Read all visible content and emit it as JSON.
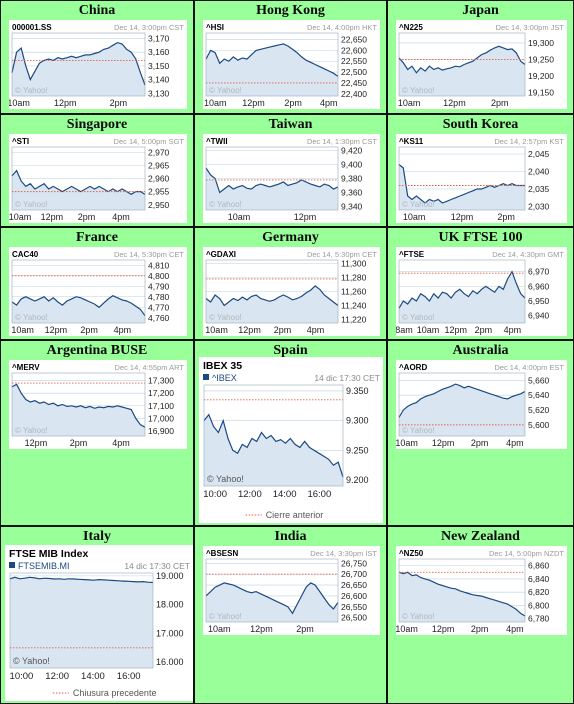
{
  "colors": {
    "cell_bg": "#99ff99",
    "line": "#1c4a80",
    "fill": "#d9e6f2",
    "prev_close": "#e06040",
    "grid": "#bcd0e6",
    "yahoo": "#b0b6bd",
    "label": "#222222"
  },
  "markets": [
    {
      "title": "China",
      "chart_data": {
        "type": "area",
        "style": "small",
        "symbol": "000001.SS",
        "stamp": "Dec 14, 3:00pm CST",
        "ylim": [
          3128,
          3174
        ],
        "yticks": [
          "3,170",
          "3,160",
          "3,150",
          "3,140",
          "3,130"
        ],
        "ytick_values": [
          3170,
          3160,
          3150,
          3140,
          3130
        ],
        "xticks": [
          "10am",
          "12pm",
          "2pm"
        ],
        "xtick_pos": [
          0.05,
          0.4,
          0.8
        ],
        "prev_close": 3154,
        "source": "© Yahoo!",
        "values": [
          3145,
          3160,
          3163,
          3150,
          3140,
          3146,
          3152,
          3154,
          3155,
          3154,
          3156,
          3155,
          3156,
          3157,
          3156,
          3157,
          3158,
          3158,
          3159,
          3160,
          3162,
          3163,
          3165,
          3167,
          3166,
          3162,
          3160,
          3155,
          3145,
          3136
        ]
      }
    },
    {
      "title": "Hong Kong",
      "chart_data": {
        "type": "area",
        "style": "small",
        "symbol": "^HSI",
        "stamp": "Dec 14, 4:00pm HKT",
        "ylim": [
          22390,
          22680
        ],
        "yticks": [
          "22,650",
          "22,600",
          "22,550",
          "22,500",
          "22,450",
          "22,400"
        ],
        "ytick_values": [
          22650,
          22600,
          22550,
          22500,
          22450,
          22400
        ],
        "xticks": [
          "10am",
          "12pm",
          "2pm",
          "4pm"
        ],
        "xtick_pos": [
          0.07,
          0.36,
          0.66,
          0.93
        ],
        "prev_close": 22450,
        "source": "© Yahoo!",
        "values": [
          22560,
          22600,
          22590,
          22540,
          22560,
          22550,
          22570,
          22555,
          22565,
          22560,
          22580,
          22600,
          22605,
          22610,
          22615,
          22620,
          22625,
          22630,
          22620,
          22605,
          22590,
          22570,
          22555,
          22545,
          22535,
          22525,
          22515,
          22505,
          22495,
          22480
        ]
      }
    },
    {
      "title": "Japan",
      "chart_data": {
        "type": "area",
        "style": "small",
        "symbol": "^N225",
        "stamp": "Dec 14, 3:00pm JST",
        "ylim": [
          19140,
          19330
        ],
        "yticks": [
          "19,300",
          "19,250",
          "19,200",
          "19,150"
        ],
        "ytick_values": [
          19300,
          19250,
          19200,
          19150
        ],
        "xticks": [
          "10am",
          "12pm",
          "2pm"
        ],
        "xtick_pos": [
          0.08,
          0.44,
          0.8
        ],
        "prev_close": 19250,
        "source": "© Yahoo!",
        "values": [
          19255,
          19240,
          19220,
          19230,
          19210,
          19225,
          19215,
          19230,
          19220,
          19225,
          19218,
          19222,
          19225,
          19230,
          19228,
          19235,
          19240,
          19245,
          19255,
          19265,
          19270,
          19278,
          19285,
          19290,
          19285,
          19280,
          19282,
          19270,
          19245,
          19235
        ]
      }
    },
    {
      "title": "Singapore",
      "chart_data": {
        "type": "area",
        "style": "small",
        "symbol": "^STI",
        "stamp": "Dec 14, 5:00pm SGT",
        "ylim": [
          2948,
          2972
        ],
        "yticks": [
          "2,970",
          "2,965",
          "2,960",
          "2,955",
          "2,950"
        ],
        "ytick_values": [
          2970,
          2965,
          2960,
          2955,
          2950
        ],
        "xticks": [
          "10am",
          "12pm",
          "2pm",
          "4pm"
        ],
        "xtick_pos": [
          0.06,
          0.3,
          0.56,
          0.82
        ],
        "prev_close": 2955,
        "source": "© Yahoo!",
        "values": [
          2961,
          2963,
          2959,
          2957,
          2958,
          2956,
          2957,
          2958,
          2956,
          2957,
          2956,
          2955,
          2956,
          2957,
          2956,
          2955,
          2956,
          2957,
          2956,
          2957,
          2956,
          2955,
          2956,
          2955,
          2956,
          2955,
          2954,
          2955,
          2955,
          2954
        ]
      }
    },
    {
      "title": "Taiwan",
      "chart_data": {
        "type": "area",
        "style": "small",
        "symbol": "^TWII",
        "stamp": "Dec 14, 1:30pm CST",
        "ylim": [
          9335,
          9425
        ],
        "yticks": [
          "9,420",
          "9,400",
          "9,380",
          "9,360",
          "9,340"
        ],
        "ytick_values": [
          9420,
          9400,
          9380,
          9360,
          9340
        ],
        "xticks": [
          "10am",
          "12pm"
        ],
        "xtick_pos": [
          0.25,
          0.75
        ],
        "prev_close": 9378,
        "source": "© Yahoo!",
        "values": [
          9395,
          9385,
          9380,
          9360,
          9365,
          9370,
          9365,
          9368,
          9370,
          9366,
          9365,
          9370,
          9372,
          9370,
          9368,
          9370,
          9372,
          9375,
          9370,
          9372,
          9374,
          9378,
          9375,
          9372,
          9370,
          9368,
          9372,
          9370,
          9365,
          9368
        ]
      }
    },
    {
      "title": "South Korea",
      "chart_data": {
        "type": "area",
        "style": "small",
        "symbol": "^KS11",
        "stamp": "Dec 14, 2:57pm KST",
        "ylim": [
          2029,
          2047
        ],
        "yticks": [
          "2,045",
          "2,040",
          "2,035",
          "2,030"
        ],
        "ytick_values": [
          2045,
          2040,
          2035,
          2030
        ],
        "xticks": [
          "10am",
          "12pm",
          "2pm"
        ],
        "xtick_pos": [
          0.12,
          0.5,
          0.85
        ],
        "prev_close": 2036,
        "source": "© Yahoo!",
        "values": [
          2042,
          2041,
          2033,
          2032,
          2033,
          2032,
          2031,
          2032,
          2031.5,
          2032,
          2031,
          2031.5,
          2032,
          2032.5,
          2033,
          2033.5,
          2034,
          2034.5,
          2035,
          2035,
          2035.5,
          2036,
          2035.5,
          2036,
          2036.5,
          2036,
          2036.5,
          2036,
          2036,
          2036
        ]
      }
    },
    {
      "title": "France",
      "chart_data": {
        "type": "area",
        "style": "small",
        "symbol": "CAC40",
        "stamp": "Dec 14, 5:30pm CET",
        "ylim": [
          4755,
          4815
        ],
        "yticks": [
          "4,810",
          "4,800",
          "4,790",
          "4,780",
          "4,770",
          "4,760"
        ],
        "ytick_values": [
          4810,
          4800,
          4790,
          4780,
          4770,
          4760
        ],
        "xticks": [
          "10am",
          "12pm",
          "2pm",
          "4pm"
        ],
        "xtick_pos": [
          0.08,
          0.33,
          0.58,
          0.83
        ],
        "prev_close": 4800,
        "source": "© Yahoo!",
        "values": [
          4775,
          4772,
          4778,
          4780,
          4778,
          4776,
          4778,
          4780,
          4776,
          4779,
          4775,
          4772,
          4776,
          4778,
          4780,
          4779,
          4777,
          4775,
          4773,
          4770,
          4774,
          4778,
          4781,
          4779,
          4777,
          4776,
          4774,
          4771,
          4768,
          4762
        ]
      }
    },
    {
      "title": "Germany",
      "chart_data": {
        "type": "area",
        "style": "small",
        "symbol": "^GDAXI",
        "stamp": "Dec 14, 5:30pm CET",
        "ylim": [
          11215,
          11305
        ],
        "yticks": [
          "11,300",
          "11,280",
          "11,260",
          "11,240",
          "11,220"
        ],
        "ytick_values": [
          11300,
          11280,
          11260,
          11240,
          11220
        ],
        "xticks": [
          "10am",
          "12pm",
          "2pm",
          "4pm"
        ],
        "xtick_pos": [
          0.08,
          0.33,
          0.58,
          0.83
        ],
        "prev_close": 11278,
        "source": "© Yahoo!",
        "values": [
          11250,
          11245,
          11255,
          11250,
          11240,
          11245,
          11250,
          11247,
          11252,
          11248,
          11253,
          11255,
          11250,
          11248,
          11246,
          11248,
          11252,
          11255,
          11252,
          11248,
          11250,
          11253,
          11258,
          11262,
          11268,
          11263,
          11255,
          11250,
          11245,
          11240
        ]
      }
    },
    {
      "title": "UK FTSE 100",
      "chart_data": {
        "type": "area",
        "style": "small",
        "symbol": "^FTSE",
        "stamp": "Dec 14, 4:30pm GMT",
        "ylim": [
          6935,
          6978
        ],
        "yticks": [
          "6,970",
          "6,960",
          "6,950",
          "6,940"
        ],
        "ytick_values": [
          6970,
          6960,
          6950,
          6940
        ],
        "xticks": [
          "8am",
          "10am",
          "12pm",
          "2pm",
          "4pm"
        ],
        "xtick_pos": [
          0.04,
          0.23,
          0.45,
          0.67,
          0.9
        ],
        "prev_close": 6969,
        "source": "© Yahoo!",
        "values": [
          6945,
          6950,
          6948,
          6952,
          6950,
          6955,
          6953,
          6950,
          6955,
          6952,
          6956,
          6955,
          6952,
          6956,
          6958,
          6955,
          6953,
          6957,
          6955,
          6958,
          6960,
          6958,
          6956,
          6960,
          6958,
          6965,
          6970,
          6962,
          6955,
          6952
        ]
      }
    },
    {
      "title": "Argentina BUSE",
      "chart_data": {
        "type": "area",
        "style": "small",
        "symbol": "^MERV",
        "stamp": "Dec 14, 4:55pm ART",
        "ylim": [
          16860,
          17360
        ],
        "yticks": [
          "17,300",
          "17,200",
          "17,100",
          "17,000",
          "16,900"
        ],
        "ytick_values": [
          17300,
          17200,
          17100,
          17000,
          16900
        ],
        "xticks": [
          "12pm",
          "2pm",
          "4pm"
        ],
        "xtick_pos": [
          0.18,
          0.5,
          0.82
        ],
        "prev_close": 17280,
        "source": "© Yahoo!",
        "values": [
          17250,
          17270,
          17200,
          17150,
          17130,
          17140,
          17120,
          17130,
          17110,
          17120,
          17100,
          17110,
          17095,
          17100,
          17090,
          17100,
          17085,
          17095,
          17080,
          17090,
          17085,
          17095,
          17090,
          17100,
          17090,
          17080,
          17070,
          17000,
          16950,
          16930
        ]
      }
    },
    {
      "title": "Spain",
      "chart_data": {
        "type": "area",
        "style": "large",
        "header": "IBEX 35",
        "symbol": "^IBEX",
        "stamp": "14 dic 17:30 CET",
        "ylim": [
          9190,
          9360
        ],
        "yticks": [
          "9.350",
          "9.300",
          "9.250",
          "9.200"
        ],
        "ytick_values": [
          9350,
          9300,
          9250,
          9200
        ],
        "xticks": [
          "10:00",
          "12:00",
          "14:00",
          "16:00"
        ],
        "xtick_pos": [
          0.08,
          0.33,
          0.58,
          0.83
        ],
        "prev_close": 9335,
        "source": "© Yahoo!",
        "legend": "Cierre anterior",
        "values": [
          9300,
          9310,
          9290,
          9280,
          9300,
          9270,
          9250,
          9245,
          9260,
          9255,
          9270,
          9265,
          9280,
          9270,
          9275,
          9265,
          9268,
          9262,
          9270,
          9260,
          9255,
          9265,
          9255,
          9250,
          9245,
          9240,
          9235,
          9225,
          9230,
          9205
        ]
      }
    },
    {
      "title": "Australia",
      "chart_data": {
        "type": "area",
        "style": "small",
        "symbol": "^AORD",
        "stamp": "Dec 14, 4:00pm EST",
        "ylim": [
          5585,
          5670
        ],
        "yticks": [
          "5,660",
          "5,640",
          "5,620",
          "5,600"
        ],
        "ytick_values": [
          5660,
          5640,
          5620,
          5600
        ],
        "xticks": [
          "10am",
          "12pm",
          "2pm",
          "4pm"
        ],
        "xtick_pos": [
          0.06,
          0.35,
          0.64,
          0.92
        ],
        "prev_close": 5600,
        "source": "© Yahoo!",
        "values": [
          5610,
          5620,
          5625,
          5628,
          5630,
          5635,
          5638,
          5640,
          5642,
          5645,
          5648,
          5650,
          5652,
          5655,
          5653,
          5650,
          5652,
          5650,
          5648,
          5646,
          5644,
          5642,
          5640,
          5638,
          5636,
          5635,
          5638,
          5640,
          5642,
          5645
        ]
      }
    },
    {
      "title": "Italy",
      "chart_data": {
        "type": "area",
        "style": "large",
        "header": "FTSE MIB Index",
        "symbol": "FTSEMIB.MI",
        "stamp": "14 dic 17:30 CET",
        "ylim": [
          15800,
          19100
        ],
        "yticks": [
          "19.000",
          "18.000",
          "17.000",
          "16.000"
        ],
        "ytick_values": [
          19000,
          18000,
          17000,
          16000
        ],
        "xticks": [
          "10:00",
          "12:00",
          "14:00",
          "16:00"
        ],
        "xtick_pos": [
          0.08,
          0.33,
          0.58,
          0.83
        ],
        "prev_close": 16500,
        "source": "© Yahoo!",
        "legend": "Chiusura precedente",
        "values": [
          18900,
          18950,
          18900,
          18920,
          18950,
          18930,
          18900,
          18920,
          18910,
          18890,
          18900,
          18880,
          18900,
          18890,
          18880,
          18870,
          18860,
          18850,
          18870,
          18860,
          18850,
          18840,
          18830,
          18820,
          18810,
          18800,
          18790,
          18800,
          18780,
          18770
        ]
      }
    },
    {
      "title": "India",
      "chart_data": {
        "type": "area",
        "style": "small",
        "symbol": "^BSESN",
        "stamp": "Dec 14, 3:30pm IST",
        "ylim": [
          26480,
          26770
        ],
        "yticks": [
          "26,750",
          "26,700",
          "26,650",
          "26,600",
          "26,550",
          "26,500"
        ],
        "ytick_values": [
          26750,
          26700,
          26650,
          26600,
          26550,
          26500
        ],
        "xticks": [
          "10am",
          "12pm",
          "2pm"
        ],
        "xtick_pos": [
          0.1,
          0.42,
          0.75
        ],
        "prev_close": 26700,
        "source": "© Yahoo!",
        "values": [
          26600,
          26620,
          26640,
          26650,
          26660,
          26655,
          26650,
          26640,
          26630,
          26620,
          26615,
          26620,
          26610,
          26600,
          26590,
          26580,
          26570,
          26560,
          26550,
          26520,
          26560,
          26600,
          26640,
          26660,
          26650,
          26620,
          26590,
          26560,
          26540,
          26570
        ]
      }
    },
    {
      "title": "New Zealand",
      "chart_data": {
        "type": "area",
        "style": "small",
        "symbol": "^NZ50",
        "stamp": "Dec 14, 5:00pm NZDT",
        "ylim": [
          6775,
          6870
        ],
        "yticks": [
          "6,860",
          "6,840",
          "6,820",
          "6,800",
          "6,780"
        ],
        "ytick_values": [
          6860,
          6840,
          6820,
          6800,
          6780
        ],
        "xticks": [
          "10am",
          "12pm",
          "2pm",
          "4pm"
        ],
        "xtick_pos": [
          0.06,
          0.35,
          0.64,
          0.92
        ],
        "prev_close": 6850,
        "source": "© Yahoo!",
        "values": [
          6850,
          6848,
          6850,
          6845,
          6846,
          6842,
          6840,
          6838,
          6835,
          6832,
          6830,
          6828,
          6826,
          6825,
          6822,
          6820,
          6818,
          6816,
          6815,
          6814,
          6812,
          6810,
          6808,
          6806,
          6804,
          6802,
          6798,
          6794,
          6788,
          6784
        ]
      }
    }
  ]
}
